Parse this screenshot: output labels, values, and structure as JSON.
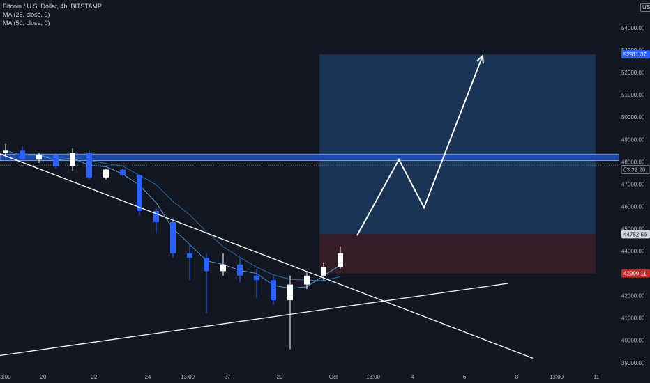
{
  "header": {
    "symbol": "Bitcoin / U.S. Dollar, 4h, BITSTAMP",
    "indicator_1": "MA (25, close, 0)",
    "indicator_2": "MA (50, close, 0)",
    "currency": "USD"
  },
  "colors": {
    "background": "#131722",
    "up_candle": "#ffffff",
    "down_candle": "#2962ff",
    "ma25": "#5b9bd5",
    "ma50": "#2a6fa8",
    "target_zone": "#1c3a5e",
    "stop_zone": "#3b1f2a",
    "resistance_band": "#1e53c8",
    "trendlines": "#ffffff"
  },
  "chart_data": {
    "type": "candlestick",
    "x_tick_labels": [
      "3:00",
      "20",
      "22",
      "24",
      "13:00",
      "27",
      "29",
      "Oct",
      "13:00",
      "4",
      "6",
      "8",
      "13:00",
      "11"
    ],
    "y_tick_labels": [
      "54000.00",
      "53000.00",
      "52000.00",
      "51000.00",
      "50000.00",
      "49000.00",
      "48000.00",
      "47000.00",
      "46000.00",
      "45000.00",
      "44000.00",
      "43000.00",
      "42000.00",
      "41000.00",
      "40000.00",
      "39000.00"
    ],
    "ylim": [
      38900,
      55000
    ],
    "price_labels": [
      {
        "text": "52811.37",
        "value": 52811.37,
        "style": "target"
      },
      {
        "text": "03:32:20",
        "value": 47650,
        "style": "countdown"
      },
      {
        "text": "44752.56",
        "value": 44752.56,
        "style": "entry"
      },
      {
        "text": "42999.11",
        "value": 42999.11,
        "style": "stop"
      }
    ],
    "resistance_band": [
      48050,
      48350
    ],
    "current_price": 47850,
    "position": {
      "target": 52811.37,
      "entry": 44752.56,
      "stop": 42999.11
    },
    "projection_path": [
      {
        "x_index": 21,
        "y": 44700
      },
      {
        "x_index": 23.5,
        "y": 48100
      },
      {
        "x_index": 25,
        "y": 45950
      },
      {
        "x_index": 28.5,
        "y": 52750
      }
    ],
    "trendline_down": [
      {
        "x_index": -1,
        "y": 48550
      },
      {
        "x_index": 31.5,
        "y": 39200
      }
    ],
    "trendline_up": [
      {
        "x_index": -1,
        "y": 39250
      },
      {
        "x_index": 30,
        "y": 42550
      }
    ],
    "candles": [
      {
        "o": 48400,
        "h": 48800,
        "l": 48200,
        "c": 48500
      },
      {
        "o": 48500,
        "h": 48700,
        "l": 48050,
        "c": 48100
      },
      {
        "o": 48100,
        "h": 48400,
        "l": 47950,
        "c": 48300
      },
      {
        "o": 48300,
        "h": 48400,
        "l": 47700,
        "c": 47800
      },
      {
        "o": 47800,
        "h": 48600,
        "l": 47600,
        "c": 48400
      },
      {
        "o": 48400,
        "h": 48500,
        "l": 47200,
        "c": 47300
      },
      {
        "o": 47300,
        "h": 47700,
        "l": 47200,
        "c": 47650
      },
      {
        "o": 47650,
        "h": 47700,
        "l": 47350,
        "c": 47400
      },
      {
        "o": 47400,
        "h": 47450,
        "l": 45600,
        "c": 45800
      },
      {
        "o": 45800,
        "h": 45900,
        "l": 44800,
        "c": 45300
      },
      {
        "o": 45300,
        "h": 45500,
        "l": 43700,
        "c": 43900
      },
      {
        "o": 43900,
        "h": 44300,
        "l": 42700,
        "c": 43700
      },
      {
        "o": 43700,
        "h": 43900,
        "l": 41200,
        "c": 43100
      },
      {
        "o": 43100,
        "h": 43900,
        "l": 42900,
        "c": 43400
      },
      {
        "o": 43400,
        "h": 43700,
        "l": 42600,
        "c": 42900
      },
      {
        "o": 42900,
        "h": 43200,
        "l": 41900,
        "c": 42700
      },
      {
        "o": 42700,
        "h": 42900,
        "l": 41600,
        "c": 41800
      },
      {
        "o": 41800,
        "h": 42900,
        "l": 39600,
        "c": 42500
      },
      {
        "o": 42500,
        "h": 43100,
        "l": 42300,
        "c": 42900
      },
      {
        "o": 42900,
        "h": 43500,
        "l": 42700,
        "c": 43300
      },
      {
        "o": 43300,
        "h": 44200,
        "l": 43200,
        "c": 43900
      }
    ]
  }
}
